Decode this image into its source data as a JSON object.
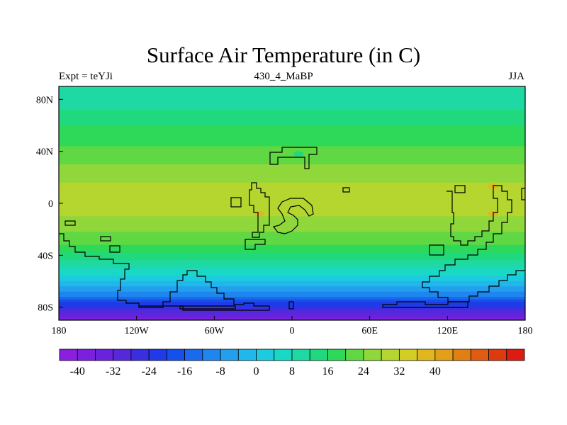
{
  "title": "Surface Air Temperature (in C)",
  "subtitle_left": "Expt = teYJi",
  "subtitle_center": "430_4_MaBP",
  "subtitle_right": "JJA",
  "x_ticks": [
    "180",
    "120W",
    "60W",
    "0",
    "60E",
    "120E",
    "180"
  ],
  "y_ticks": [
    "80N",
    "40N",
    "0",
    "40S",
    "80S"
  ],
  "colorbar": {
    "labels": [
      "-40",
      "-32",
      "-24",
      "-16",
      "-8",
      "0",
      "8",
      "16",
      "24",
      "32",
      "40"
    ],
    "colors": [
      "#8a1fe0",
      "#7a20de",
      "#6a22dc",
      "#5528dc",
      "#3b2ee0",
      "#1f3ae6",
      "#1650ea",
      "#1b6aee",
      "#1f86ef",
      "#22a0ee",
      "#20b8ea",
      "#1ccbe0",
      "#1ad8c6",
      "#1ed9a3",
      "#20d87d",
      "#2ed95a",
      "#5fd843",
      "#8fd73a",
      "#b5d52f",
      "#d2ce25",
      "#e0b81e",
      "#e29f17",
      "#e27f12",
      "#e05c10",
      "#dd3a10",
      "#dc1c10"
    ]
  },
  "chart_data": {
    "type": "heatmap",
    "title": "Surface Air Temperature (in C)",
    "variable": "Surface Air Temperature",
    "units": "C",
    "experiment": "teYJi",
    "period": "430_4_MaBP",
    "season": "JJA",
    "xlim": [
      -180,
      180
    ],
    "ylim": [
      -90,
      90
    ],
    "zonal_mean_profile": {
      "lat": [
        90,
        80,
        70,
        60,
        50,
        40,
        30,
        20,
        10,
        0,
        -10,
        -20,
        -30,
        -40,
        -50,
        -60,
        -70,
        -80,
        -90
      ],
      "temp_c": [
        8,
        9,
        13,
        16,
        18,
        21,
        24,
        27,
        29,
        29,
        28,
        25,
        21,
        15,
        8,
        0,
        -10,
        -25,
        -38
      ]
    },
    "hotspots": [
      {
        "lon": -25,
        "lat": -8,
        "temp_c": 38
      },
      {
        "lon": 155,
        "lat": 13,
        "temp_c": 36
      },
      {
        "lon": 155,
        "lat": -8,
        "temp_c": 36
      },
      {
        "lon": 5,
        "lat": 38,
        "temp_c": 12
      }
    ]
  }
}
